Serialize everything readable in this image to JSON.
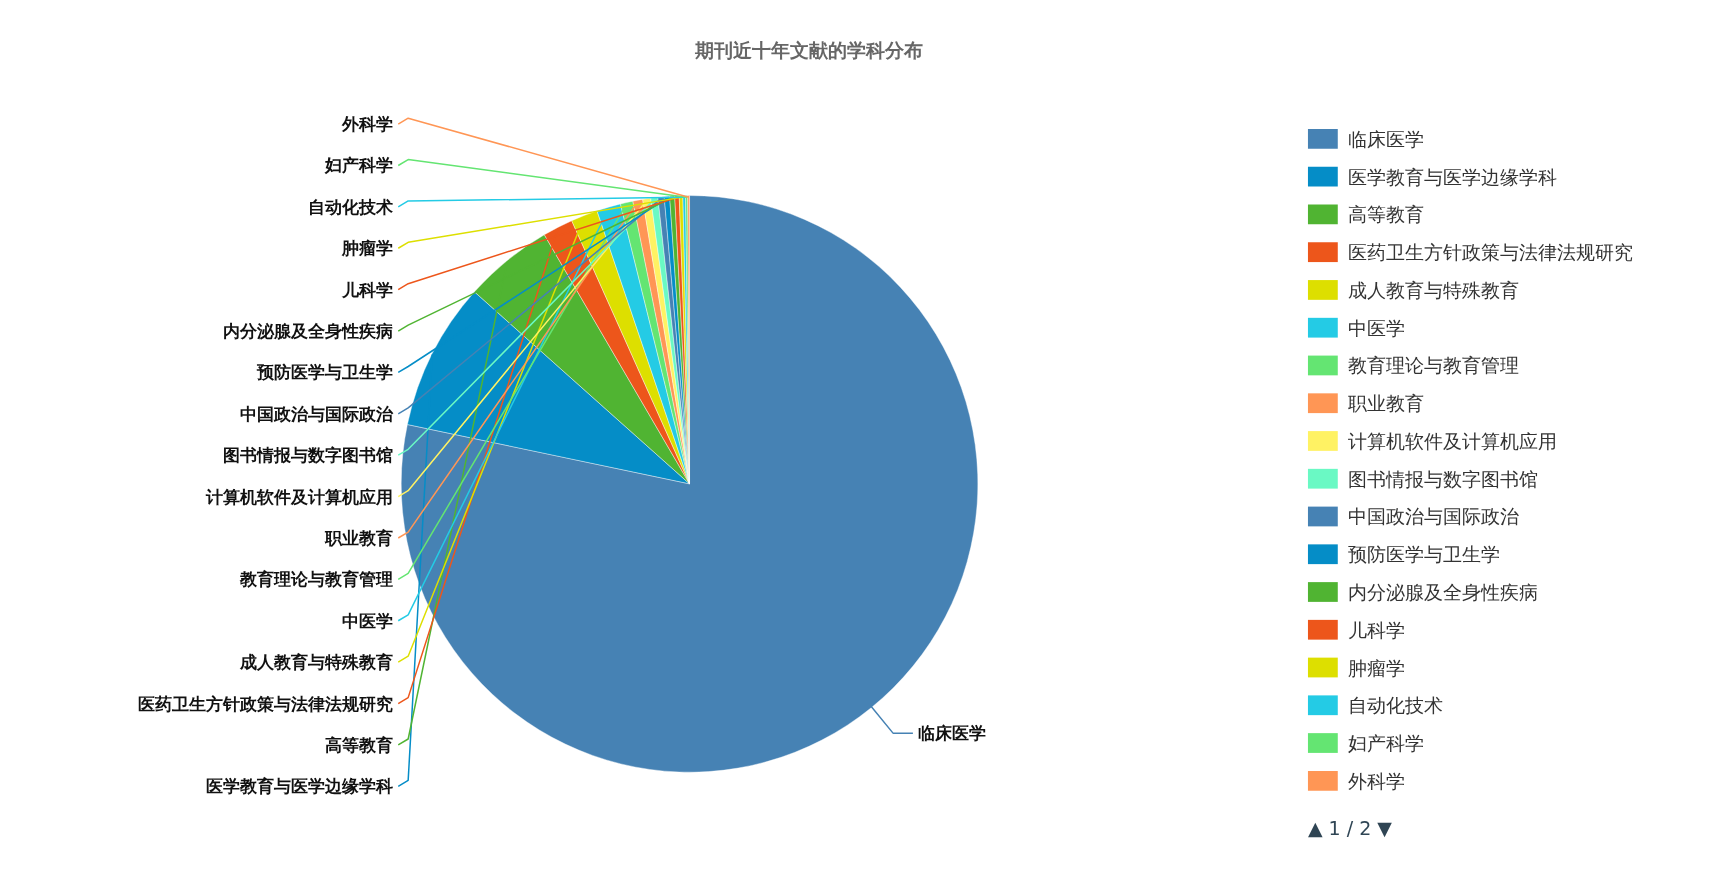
{
  "chart_data": {
    "type": "pie",
    "title": "期刊近十年文献的学科分布",
    "categories": [
      "临床医学",
      "医学教育与医学边缘学科",
      "高等教育",
      "医药卫生方针政策与法律法规研究",
      "成人教育与特殊教育",
      "中医学",
      "教育理论与教育管理",
      "职业教育",
      "计算机软件及计算机应用",
      "图书情报与数字图书馆",
      "中国政治与国际政治",
      "预防医学与卫生学",
      "内分泌腺及全身性疾病",
      "儿科学",
      "肿瘤学",
      "自动化技术",
      "妇产科学",
      "外科学"
    ],
    "values": [
      78.3,
      8.3,
      5,
      1.7,
      1.5,
      1.35,
      0.7,
      0.55,
      0.45,
      0.4,
      0.35,
      0.3,
      0.28,
      0.25,
      0.2,
      0.15,
      0.12,
      0.1
    ],
    "colors": [
      "#4682b4",
      "#058dc7",
      "#50b432",
      "#ed561b",
      "#dddf00",
      "#24cbe5",
      "#64e572",
      "#ff9655",
      "#fff263",
      "#6af9c4",
      "#4682b4",
      "#058dc7",
      "#50b432",
      "#ed561b",
      "#dddf00",
      "#24cbe5",
      "#64e572",
      "#ff9655"
    ],
    "legend": "right",
    "annotations": [
      "▲ 1 / 2 ▼"
    ]
  }
}
